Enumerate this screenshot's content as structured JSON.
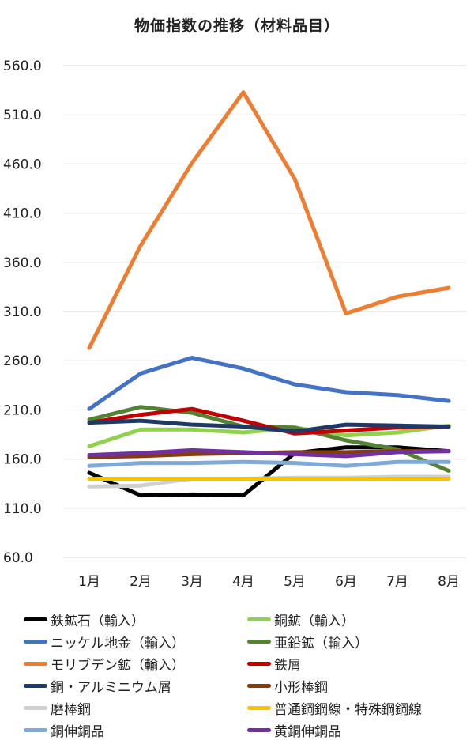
{
  "chart_data": {
    "type": "line",
    "title": "物価指数の推移（材料品目）",
    "xlabel": "",
    "ylabel": "",
    "categories": [
      "1月",
      "2月",
      "3月",
      "4月",
      "5月",
      "6月",
      "7月",
      "8月"
    ],
    "ylim": [
      60,
      560
    ],
    "yticks": [
      "60.0",
      "110.0",
      "160.0",
      "210.0",
      "260.0",
      "310.0",
      "360.0",
      "410.0",
      "460.0",
      "510.0",
      "560.0"
    ],
    "grid": true,
    "legend_position": "bottom",
    "series": [
      {
        "name": "鉄鉱石（輸入）",
        "color": "#000000",
        "values": [
          146,
          123,
          124,
          123,
          166,
          172,
          172,
          168
        ]
      },
      {
        "name": "銅鉱（輸入）",
        "color": "#92D050",
        "values": [
          173,
          190,
          190,
          187,
          192,
          184,
          187,
          194
        ]
      },
      {
        "name": "ニッケル地金（輸入）",
        "color": "#4472C4",
        "values": [
          211,
          247,
          263,
          252,
          236,
          228,
          225,
          219
        ]
      },
      {
        "name": "亜鉛鉱（輸入）",
        "color": "#548235",
        "values": [
          200,
          213,
          207,
          193,
          192,
          179,
          170,
          148
        ]
      },
      {
        "name": "モリブデン鉱（輸入）",
        "color": "#ED7D31",
        "values": [
          273,
          377,
          461,
          533,
          445,
          308,
          325,
          334
        ]
      },
      {
        "name": "鉄屑",
        "color": "#C00000",
        "values": [
          197,
          205,
          211,
          199,
          186,
          189,
          192,
          193
        ]
      },
      {
        "name": "銅・アルミニウム屑",
        "color": "#203864",
        "values": [
          197,
          199,
          195,
          193,
          188,
          195,
          194,
          193
        ]
      },
      {
        "name": "小形棒鋼",
        "color": "#843C0C",
        "values": [
          162,
          163,
          165,
          166,
          167,
          167,
          168,
          168
        ]
      },
      {
        "name": "磨棒鋼",
        "color": "#D0D0D0",
        "values": [
          132,
          133,
          140,
          140,
          141,
          141,
          142,
          142
        ]
      },
      {
        "name": "普通鋼鋼線・特殊鋼鋼線",
        "color": "#FFC000",
        "values": [
          140,
          140,
          140,
          140,
          140,
          140,
          140,
          140
        ]
      },
      {
        "name": "銅伸銅品",
        "color": "#7FA9D9",
        "values": [
          153,
          156,
          156,
          157,
          156,
          153,
          157,
          157
        ]
      },
      {
        "name": "黄銅伸銅品",
        "color": "#7030A0",
        "values": [
          164,
          166,
          169,
          167,
          165,
          163,
          167,
          168
        ]
      }
    ]
  }
}
